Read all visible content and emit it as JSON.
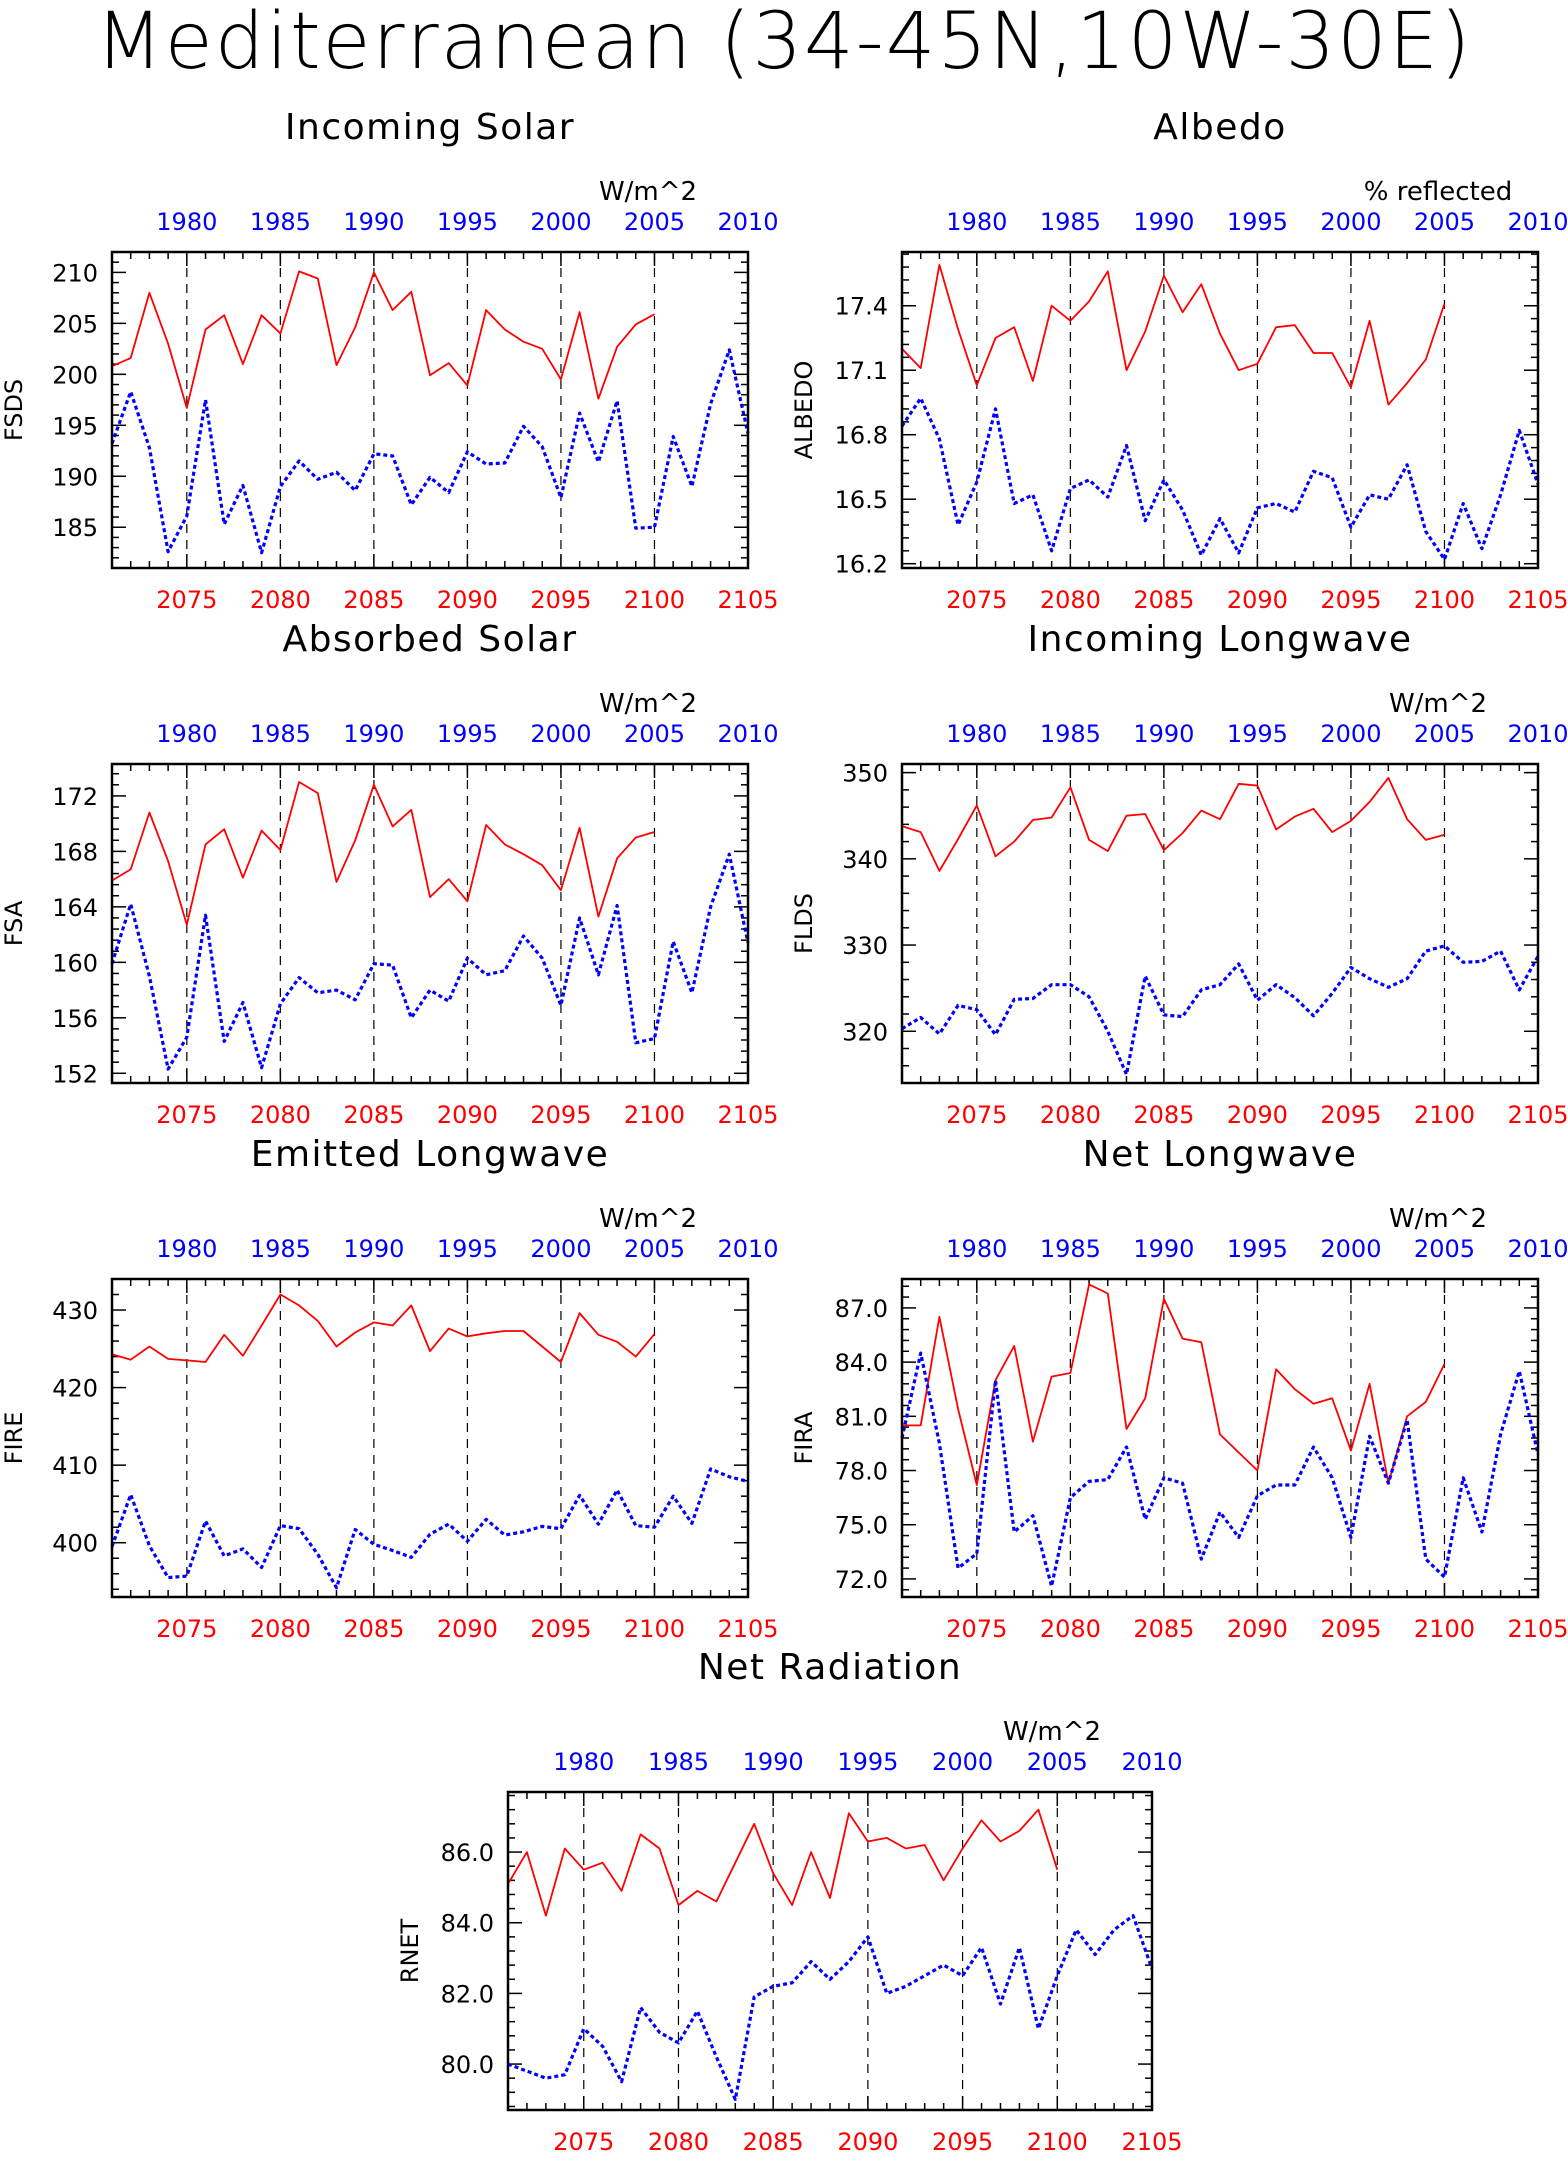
{
  "title": "Mediterranean (34-45N,10W-30E)",
  "colors": {
    "future": "#ff0000",
    "historical": "#0000ff",
    "axis": "#000000"
  },
  "chart_data": [
    {
      "type": "line",
      "panel": "fsds",
      "title": "Incoming Solar",
      "units": "W/m^2",
      "ylabel": "FSDS",
      "ylim": [
        181,
        212
      ],
      "yticks": [
        185,
        190,
        195,
        200,
        205,
        210
      ],
      "xlim_bottom": [
        2071,
        2105
      ],
      "xticks_bottom": [
        2075,
        2080,
        2085,
        2090,
        2095,
        2100,
        2105
      ],
      "xlim_top": [
        1976,
        2010
      ],
      "xticks_top": [
        1980,
        1985,
        1990,
        1995,
        2000,
        2005,
        2010
      ],
      "series": [
        {
          "axis": "bottom",
          "x_start": 2071,
          "values": [
            200.8,
            201.6,
            208.0,
            203.0,
            196.7,
            204.4,
            205.8,
            201.0,
            205.8,
            204.0,
            210.1,
            209.4,
            200.9,
            204.6,
            210.0,
            206.3,
            208.1,
            199.9,
            201.1,
            198.9,
            206.3,
            204.4,
            203.2,
            202.5,
            199.5,
            206.1,
            197.6,
            202.7,
            204.9,
            205.9
          ]
        },
        {
          "axis": "top",
          "x_start": 1976,
          "values": [
            193.2,
            198.3,
            192.8,
            182.6,
            186.1,
            197.5,
            185.3,
            189.1,
            182.5,
            189.0,
            191.5,
            189.7,
            190.4,
            188.6,
            192.2,
            192.0,
            187.2,
            189.9,
            188.4,
            192.4,
            191.2,
            191.3,
            194.9,
            192.9,
            187.9,
            196.2,
            191.4,
            197.4,
            184.9,
            185.0,
            193.9,
            189.0,
            197.1,
            202.4,
            194.2
          ]
        }
      ]
    },
    {
      "type": "line",
      "panel": "albedo",
      "title": "Albedo",
      "units": "% reflected",
      "ylabel": "ALBEDO",
      "ylim": [
        16.18,
        17.65
      ],
      "yticks": [
        16.2,
        16.5,
        16.8,
        17.1,
        17.4
      ],
      "xlim_bottom": [
        2071,
        2105
      ],
      "xticks_bottom": [
        2075,
        2080,
        2085,
        2090,
        2095,
        2100,
        2105
      ],
      "xlim_top": [
        1976,
        2010
      ],
      "xticks_top": [
        1980,
        1985,
        1990,
        1995,
        2000,
        2005,
        2010
      ],
      "series": [
        {
          "axis": "bottom",
          "x_start": 2071,
          "values": [
            17.2,
            17.11,
            17.59,
            17.29,
            17.03,
            17.25,
            17.3,
            17.05,
            17.4,
            17.33,
            17.42,
            17.56,
            17.1,
            17.28,
            17.54,
            17.37,
            17.5,
            17.27,
            17.1,
            17.13,
            17.3,
            17.31,
            17.18,
            17.18,
            17.02,
            17.33,
            16.94,
            17.04,
            17.15,
            17.41
          ]
        },
        {
          "axis": "top",
          "x_start": 1976,
          "values": [
            16.84,
            16.97,
            16.78,
            16.38,
            16.58,
            16.92,
            16.48,
            16.52,
            16.26,
            16.55,
            16.59,
            16.51,
            16.75,
            16.4,
            16.59,
            16.45,
            16.24,
            16.41,
            16.25,
            16.46,
            16.48,
            16.44,
            16.63,
            16.6,
            16.37,
            16.52,
            16.5,
            16.66,
            16.35,
            16.22,
            16.48,
            16.27,
            16.52,
            16.82,
            16.57
          ]
        }
      ]
    },
    {
      "type": "line",
      "panel": "fsa",
      "title": "Absorbed Solar",
      "units": "W/m^2",
      "ylabel": "FSA",
      "ylim": [
        151.3,
        174.3
      ],
      "yticks": [
        152,
        156,
        160,
        164,
        168,
        172
      ],
      "xlim_bottom": [
        2071,
        2105
      ],
      "xticks_bottom": [
        2075,
        2080,
        2085,
        2090,
        2095,
        2100,
        2105
      ],
      "xlim_top": [
        1976,
        2010
      ],
      "xticks_top": [
        1980,
        1985,
        1990,
        1995,
        2000,
        2005,
        2010
      ],
      "series": [
        {
          "axis": "bottom",
          "x_start": 2071,
          "values": [
            165.9,
            166.7,
            170.8,
            167.3,
            162.7,
            168.5,
            169.6,
            166.1,
            169.5,
            168.1,
            173.0,
            172.2,
            165.8,
            168.8,
            172.8,
            169.8,
            171.0,
            164.7,
            166.0,
            164.4,
            169.9,
            168.5,
            167.8,
            167.0,
            165.2,
            169.7,
            163.3,
            167.5,
            169.0,
            169.4
          ]
        },
        {
          "axis": "top",
          "x_start": 1976,
          "values": [
            159.9,
            164.2,
            159.0,
            152.3,
            154.6,
            163.4,
            154.3,
            157.1,
            152.4,
            157.0,
            158.9,
            157.8,
            158.0,
            157.3,
            159.9,
            159.8,
            156.0,
            158.0,
            157.2,
            160.3,
            159.1,
            159.4,
            161.9,
            160.3,
            156.9,
            163.2,
            159.1,
            164.1,
            154.2,
            154.5,
            161.5,
            157.8,
            164.0,
            167.8,
            161.4
          ]
        }
      ]
    },
    {
      "type": "line",
      "panel": "flds",
      "title": "Incoming Longwave",
      "units": "W/m^2",
      "ylabel": "FLDS",
      "ylim": [
        314.0,
        351.0
      ],
      "yticks": [
        320,
        330,
        340,
        350
      ],
      "xlim_bottom": [
        2071,
        2105
      ],
      "xticks_bottom": [
        2075,
        2080,
        2085,
        2090,
        2095,
        2100,
        2105
      ],
      "xlim_top": [
        1976,
        2010
      ],
      "xticks_top": [
        1980,
        1985,
        1990,
        1995,
        2000,
        2005,
        2010
      ],
      "series": [
        {
          "axis": "bottom",
          "x_start": 2071,
          "values": [
            343.8,
            343.1,
            338.6,
            342.3,
            346.2,
            340.3,
            342.0,
            344.5,
            344.8,
            348.3,
            342.2,
            340.9,
            345.0,
            345.2,
            341.0,
            343.0,
            345.6,
            344.6,
            348.7,
            348.5,
            343.4,
            344.9,
            345.8,
            343.1,
            344.4,
            346.6,
            349.4,
            344.6,
            342.2,
            342.8
          ]
        },
        {
          "axis": "top",
          "x_start": 1976,
          "values": [
            320.3,
            321.6,
            319.7,
            323.0,
            322.5,
            319.6,
            323.7,
            323.8,
            325.4,
            325.4,
            324.0,
            320.0,
            315.0,
            326.4,
            321.9,
            321.7,
            324.8,
            325.4,
            327.8,
            323.6,
            325.4,
            323.9,
            321.8,
            324.4,
            327.4,
            326.1,
            325.1,
            326.1,
            329.3,
            329.9,
            328.0,
            328.1,
            329.3,
            324.8,
            328.7
          ]
        }
      ]
    },
    {
      "type": "line",
      "panel": "fire",
      "title": "Emitted Longwave",
      "units": "W/m^2",
      "ylabel": "FIRE",
      "ylim": [
        393.0,
        434.0
      ],
      "yticks": [
        400,
        410,
        420,
        430
      ],
      "xlim_bottom": [
        2071,
        2105
      ],
      "xticks_bottom": [
        2075,
        2080,
        2085,
        2090,
        2095,
        2100,
        2105
      ],
      "xlim_top": [
        1976,
        2010
      ],
      "xticks_top": [
        1980,
        1985,
        1990,
        1995,
        2000,
        2005,
        2010
      ],
      "series": [
        {
          "axis": "bottom",
          "x_start": 2071,
          "values": [
            424.3,
            423.6,
            425.3,
            423.7,
            423.5,
            423.3,
            426.8,
            424.1,
            428.0,
            432.0,
            430.6,
            428.6,
            425.3,
            427.1,
            428.4,
            428.0,
            430.6,
            424.7,
            427.6,
            426.6,
            427.0,
            427.3,
            427.3,
            425.3,
            423.3,
            429.6,
            426.8,
            425.9,
            424.0,
            426.9
          ]
        },
        {
          "axis": "top",
          "x_start": 1976,
          "values": [
            399.5,
            406.2,
            399.6,
            395.5,
            395.7,
            402.8,
            398.3,
            399.2,
            396.8,
            402.2,
            401.8,
            398.5,
            394.2,
            401.7,
            399.8,
            399.0,
            398.1,
            401.1,
            402.4,
            400.2,
            403.0,
            401.0,
            401.4,
            402.1,
            401.8,
            406.1,
            402.4,
            406.8,
            402.2,
            402.0,
            406.0,
            402.5,
            409.5,
            408.5,
            407.9
          ]
        }
      ]
    },
    {
      "type": "line",
      "panel": "fira",
      "title": "Net Longwave",
      "units": "W/m^2",
      "ylabel": "FIRA",
      "ylim": [
        71.0,
        88.6
      ],
      "yticks": [
        72.0,
        75.0,
        78.0,
        81.0,
        84.0,
        87.0
      ],
      "xlim_bottom": [
        2071,
        2105
      ],
      "xticks_bottom": [
        2075,
        2080,
        2085,
        2090,
        2095,
        2100,
        2105
      ],
      "xlim_top": [
        1976,
        2010
      ],
      "xticks_top": [
        1980,
        1985,
        1990,
        1995,
        2000,
        2005,
        2010
      ],
      "series": [
        {
          "axis": "bottom",
          "x_start": 2071,
          "values": [
            80.5,
            80.5,
            86.5,
            81.4,
            77.2,
            83.0,
            84.9,
            79.6,
            83.2,
            83.4,
            88.3,
            87.8,
            80.3,
            82.0,
            87.5,
            85.3,
            85.1,
            80.0,
            79.0,
            78.0,
            83.6,
            82.5,
            81.7,
            82.0,
            79.1,
            82.8,
            77.3,
            81.0,
            81.8,
            83.9
          ]
        },
        {
          "axis": "top",
          "x_start": 1976,
          "values": [
            79.8,
            84.5,
            79.5,
            72.6,
            73.4,
            83.0,
            74.6,
            75.5,
            71.6,
            76.5,
            77.4,
            77.5,
            79.3,
            75.3,
            77.6,
            77.3,
            73.1,
            75.7,
            74.3,
            76.6,
            77.2,
            77.2,
            79.3,
            77.6,
            74.3,
            79.9,
            77.3,
            80.8,
            73.1,
            72.1,
            77.6,
            74.6,
            80.0,
            83.5,
            78.9
          ]
        }
      ]
    },
    {
      "type": "line",
      "panel": "rnet",
      "title": "Net Radiation",
      "units": "W/m^2",
      "ylabel": "RNET",
      "ylim": [
        78.7,
        87.7
      ],
      "yticks": [
        80.0,
        82.0,
        84.0,
        86.0
      ],
      "xlim_bottom": [
        2071,
        2105
      ],
      "xticks_bottom": [
        2075,
        2080,
        2085,
        2090,
        2095,
        2100,
        2105
      ],
      "xlim_top": [
        1976,
        2010
      ],
      "xticks_top": [
        1980,
        1985,
        1990,
        1995,
        2000,
        2005,
        2010
      ],
      "series": [
        {
          "axis": "bottom",
          "x_start": 2071,
          "values": [
            85.1,
            86.0,
            84.2,
            86.1,
            85.5,
            85.7,
            84.9,
            86.5,
            86.1,
            84.5,
            84.9,
            84.6,
            85.7,
            86.8,
            85.4,
            84.5,
            86.0,
            84.7,
            87.1,
            86.3,
            86.4,
            86.1,
            86.2,
            85.2,
            86.1,
            86.9,
            86.3,
            86.6,
            87.2,
            85.5
          ]
        },
        {
          "axis": "top",
          "x_start": 1976,
          "values": [
            80.0,
            79.8,
            79.6,
            79.7,
            81.0,
            80.5,
            79.5,
            81.6,
            80.9,
            80.6,
            81.5,
            80.2,
            79.0,
            81.9,
            82.2,
            82.3,
            82.9,
            82.4,
            82.9,
            83.6,
            82.0,
            82.2,
            82.5,
            82.8,
            82.5,
            83.3,
            81.7,
            83.3,
            81.0,
            82.5,
            83.8,
            83.1,
            83.8,
            84.2,
            82.7
          ]
        }
      ]
    }
  ]
}
